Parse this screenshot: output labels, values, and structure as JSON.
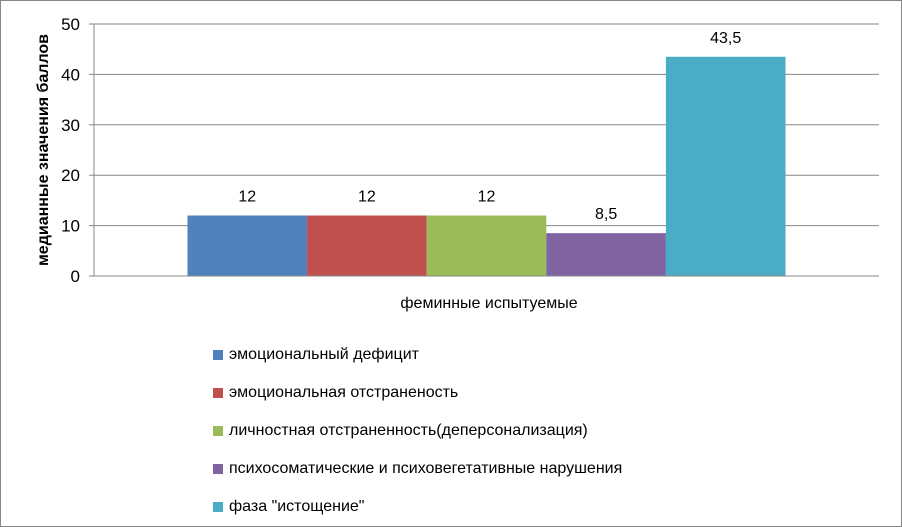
{
  "chart_data": {
    "type": "bar",
    "ylabel": "медианные значения баллов",
    "xlabel": "",
    "categories": [
      "феминные испытуемые"
    ],
    "ylim": [
      0,
      50
    ],
    "yticks": [
      "0",
      "10",
      "20",
      "30",
      "40",
      "50"
    ],
    "grid": true,
    "legend_position": "bottom",
    "series": [
      {
        "name": "эмоциональный дефицит",
        "values": [
          12
        ],
        "label": "12",
        "color": "#4F81BD"
      },
      {
        "name": "эмоциональная отстраненость",
        "values": [
          12
        ],
        "label": "12",
        "color": "#C0504D"
      },
      {
        "name": "личностная отстраненность(деперсонализация)",
        "values": [
          12
        ],
        "label": "12",
        "color": "#9BBB59"
      },
      {
        "name": "психосоматические и психовегетативные нарушения",
        "values": [
          8.5
        ],
        "label": "8,5",
        "color": "#8064A2"
      },
      {
        "name": "фаза \"истощение\"",
        "values": [
          43.5
        ],
        "label": "43,5",
        "color": "#4BACC6"
      }
    ]
  }
}
